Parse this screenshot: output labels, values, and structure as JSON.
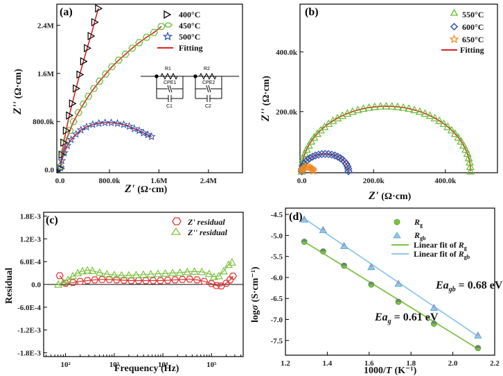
{
  "chart_data": [
    {
      "id": "a",
      "panel_label": "(a)",
      "type": "scatter",
      "xlabel_main": "Z'",
      "xlabel_unit": "(Ω·cm)",
      "ylabel_main": "Z''",
      "ylabel_unit": "(Ω·cm)",
      "xlim": [
        -0.05,
        2.95
      ],
      "ylim": [
        -0.05,
        2.75
      ],
      "x_ticks": [
        {
          "v": 0,
          "label": "0.0"
        },
        {
          "v": 0.8,
          "label": "800.0k"
        },
        {
          "v": 1.6,
          "label": "1.6M"
        },
        {
          "v": 2.4,
          "label": "2.4M"
        }
      ],
      "y_ticks": [
        {
          "v": 0,
          "label": "0.0"
        },
        {
          "v": 0.8,
          "label": "800.0k"
        },
        {
          "v": 1.6,
          "label": "1.6M"
        },
        {
          "v": 2.4,
          "label": "2.4M"
        }
      ],
      "legend": [
        "400°C",
        "450°C",
        "500°C",
        "Fitting"
      ],
      "circuit_labels": {
        "r1": "R1",
        "r2": "R2",
        "cpe1": "CPE1",
        "cpe2": "CPE2",
        "c1": "C1",
        "c2": "C2"
      },
      "series": [
        {
          "name": "400°C",
          "color": "#000000",
          "marker": "triangle-right",
          "x": [
            0.01,
            0.03,
            0.06,
            0.1,
            0.15,
            0.2,
            0.26,
            0.32,
            0.38,
            0.44,
            0.5,
            0.56,
            0.62
          ],
          "y": [
            0.02,
            0.25,
            0.45,
            0.65,
            0.9,
            1.1,
            1.35,
            1.58,
            1.8,
            2.02,
            2.22,
            2.45,
            2.68
          ]
        },
        {
          "name": "450°C",
          "color": "#66bb33",
          "marker": "hexagon",
          "x": [
            0.01,
            0.05,
            0.1,
            0.16,
            0.22,
            0.3,
            0.38,
            0.46,
            0.55,
            0.64,
            0.74,
            0.84,
            0.95,
            1.06,
            1.17,
            1.28,
            1.4,
            1.52,
            1.64
          ],
          "y": [
            0.05,
            0.28,
            0.48,
            0.65,
            0.8,
            0.95,
            1.09,
            1.22,
            1.35,
            1.47,
            1.59,
            1.71,
            1.82,
            1.92,
            2.02,
            2.11,
            2.2,
            2.28,
            2.38
          ]
        },
        {
          "name": "500°C",
          "color": "#2a4fa8",
          "marker": "star",
          "x": [
            0.01,
            0.03,
            0.07,
            0.12,
            0.18,
            0.26,
            0.34,
            0.43,
            0.53,
            0.63,
            0.73,
            0.83,
            0.93,
            1.03,
            1.12,
            1.2,
            1.28,
            1.35,
            1.42,
            1.48
          ],
          "y": [
            0.03,
            0.15,
            0.28,
            0.4,
            0.5,
            0.59,
            0.66,
            0.71,
            0.75,
            0.77,
            0.78,
            0.78,
            0.77,
            0.75,
            0.72,
            0.68,
            0.65,
            0.61,
            0.58,
            0.55
          ]
        }
      ]
    },
    {
      "id": "b",
      "panel_label": "(b)",
      "type": "scatter",
      "xlabel_main": "Z'",
      "xlabel_unit": "(Ω·cm)",
      "ylabel_main": "Z''",
      "ylabel_unit": "(Ω·cm)",
      "xlim": [
        -5,
        545
      ],
      "ylim": [
        -5,
        560
      ],
      "x_ticks": [
        {
          "v": 0,
          "label": "0.0"
        },
        {
          "v": 200,
          "label": "200.0k"
        },
        {
          "v": 400,
          "label": "400.0k"
        }
      ],
      "y_ticks": [
        {
          "v": 200,
          "label": "200.0k"
        },
        {
          "v": 400,
          "label": "400.0k"
        }
      ],
      "legend": [
        "550°C",
        "600°C",
        "650°C",
        "Fitting"
      ],
      "series": [
        {
          "name": "550°C",
          "color": "#66bb33",
          "marker": "triangle-up",
          "arc": {
            "center": 235,
            "radius": 235,
            "peak": 218
          }
        },
        {
          "name": "600°C",
          "color": "#2a4fa8",
          "marker": "diamond",
          "arc": {
            "center": 65,
            "radius": 65,
            "peak": 58
          }
        },
        {
          "name": "650°C",
          "color": "#f08a24",
          "marker": "star",
          "arc": {
            "center": 16,
            "radius": 16,
            "peak": 14
          }
        }
      ]
    },
    {
      "id": "c",
      "panel_label": "(c)",
      "type": "scatter",
      "xlabel": "Frequency (Hz)",
      "ylabel": "Residual",
      "x_log": true,
      "xlim": [
        1.55,
        5.65
      ],
      "ylim": [
        -0.0019,
        0.0019
      ],
      "x_ticks": [
        {
          "v": 2,
          "label": "10²"
        },
        {
          "v": 3,
          "label": "10³"
        },
        {
          "v": 4,
          "label": "10⁴"
        },
        {
          "v": 5,
          "label": "10⁵"
        }
      ],
      "y_ticks": [
        {
          "v": 0.0018,
          "label": "1.8E-3"
        },
        {
          "v": 0.0012,
          "label": "1.2E-3"
        },
        {
          "v": 0.0006,
          "label": "6.0E-4"
        },
        {
          "v": 0,
          "label": "0.0"
        },
        {
          "v": -0.0006,
          "label": "-6.0E-4"
        },
        {
          "v": -0.0012,
          "label": "-1.2E-3"
        },
        {
          "v": -0.0018,
          "label": "-1.8E-3"
        }
      ],
      "legend": [
        "Z' residual",
        "Z'' residual"
      ],
      "series": [
        {
          "name": "Z' residual",
          "color": "#e03030",
          "marker": "hexagon",
          "x": [
            1.88,
            2.0,
            2.15,
            2.3,
            2.45,
            2.6,
            2.75,
            2.9,
            3.05,
            3.2,
            3.35,
            3.5,
            3.65,
            3.8,
            3.95,
            4.1,
            4.25,
            4.4,
            4.55,
            4.7,
            4.85,
            5.0,
            5.1,
            5.2,
            5.3,
            5.38,
            5.44
          ],
          "y": [
            0.00023,
            3e-05,
            5e-05,
            8e-05,
            0.0001,
            0.00012,
            0.00013,
            0.00013,
            0.00012,
            0.00011,
            0.0001,
            0.0001,
            0.0001,
            0.0001,
            0.0001,
            0.00011,
            0.00012,
            0.00013,
            0.00014,
            0.00012,
            8e-05,
            2e-05,
            -3e-05,
            -4e-05,
            3e-05,
            0.00012,
            0.00022
          ]
        },
        {
          "name": "Z'' residual",
          "color": "#7dc242",
          "marker": "triangle-up",
          "x": [
            1.85,
            1.95,
            2.05,
            2.15,
            2.25,
            2.35,
            2.45,
            2.55,
            2.7,
            2.85,
            3.0,
            3.15,
            3.3,
            3.45,
            3.6,
            3.75,
            3.9,
            4.05,
            4.2,
            4.35,
            4.5,
            4.65,
            4.8,
            4.95,
            5.05,
            5.15,
            5.25,
            5.35,
            5.42
          ],
          "y": [
            0.0,
            5e-05,
            0.00012,
            0.00022,
            0.0003,
            0.00035,
            0.00037,
            0.00036,
            0.00031,
            0.00027,
            0.00025,
            0.00024,
            0.00024,
            0.00025,
            0.00026,
            0.00027,
            0.00028,
            0.00029,
            0.0003,
            0.00031,
            0.00033,
            0.00034,
            0.00033,
            0.00028,
            0.0002,
            0.00022,
            0.00035,
            0.00052,
            0.00058
          ]
        }
      ]
    },
    {
      "id": "d",
      "panel_label": "(d)",
      "type": "scatter",
      "xlabel_main": "1000/",
      "xlabel_var": "T",
      "xlabel_unit": "(K⁻¹)",
      "ylabel_main": "log",
      "ylabel_var": "σ",
      "ylabel_unit": "(S·cm⁻¹)",
      "xlim": [
        1.2,
        2.2
      ],
      "ylim": [
        -7.85,
        -4.35
      ],
      "x_ticks": [
        {
          "v": 1.2,
          "label": "1.2"
        },
        {
          "v": 1.4,
          "label": "1.4"
        },
        {
          "v": 1.6,
          "label": "1.6"
        },
        {
          "v": 1.8,
          "label": "1.8"
        },
        {
          "v": 2.0,
          "label": "2.0"
        },
        {
          "v": 2.2,
          "label": "2.2"
        }
      ],
      "y_ticks": [
        {
          "v": -4.5,
          "label": "-4.5"
        },
        {
          "v": -5.0,
          "label": "-5.0"
        },
        {
          "v": -5.5,
          "label": "-5.5"
        },
        {
          "v": -6.0,
          "label": "-6.0"
        },
        {
          "v": -6.5,
          "label": "-6.5"
        },
        {
          "v": -7.0,
          "label": "-7.0"
        },
        {
          "v": -7.5,
          "label": "-7.5"
        }
      ],
      "legend": {
        "rg_main": "R",
        "rg_sub": "g",
        "rgb_main": "R",
        "rgb_sub": "gb",
        "fit_g_main": "Linear fit of ",
        "fit_g_var": "R",
        "fit_g_sub": "g",
        "fit_gb_main": "Linear fit of ",
        "fit_gb_var": "R",
        "fit_gb_sub": "gb"
      },
      "annotations": [
        {
          "main": "Ea",
          "sub": "gb",
          "text": " = 0.68 eV",
          "x": 1.76,
          "y": -6.3
        },
        {
          "main": "Ea",
          "sub": "g",
          "text": " = 0.61 eV",
          "x": 1.55,
          "y": -7.1
        }
      ],
      "series": [
        {
          "name": "R_g",
          "color": "#7dc242",
          "marker": "circle",
          "x": [
            1.29,
            1.38,
            1.48,
            1.61,
            1.74,
            1.91,
            2.12
          ],
          "y": [
            -5.15,
            -5.38,
            -5.72,
            -6.17,
            -6.58,
            -7.1,
            -7.68
          ],
          "fit": [
            [
              1.29,
              -5.15
            ],
            [
              2.12,
              -7.7
            ]
          ]
        },
        {
          "name": "R_gb",
          "color": "#8fc8e8",
          "marker": "triangle-up",
          "x": [
            1.29,
            1.38,
            1.48,
            1.61,
            1.74,
            1.91,
            2.12
          ],
          "y": [
            -4.62,
            -4.87,
            -5.25,
            -5.75,
            -6.15,
            -6.72,
            -7.38
          ],
          "fit": [
            [
              1.29,
              -4.6
            ],
            [
              2.12,
              -7.4
            ]
          ]
        }
      ]
    }
  ]
}
